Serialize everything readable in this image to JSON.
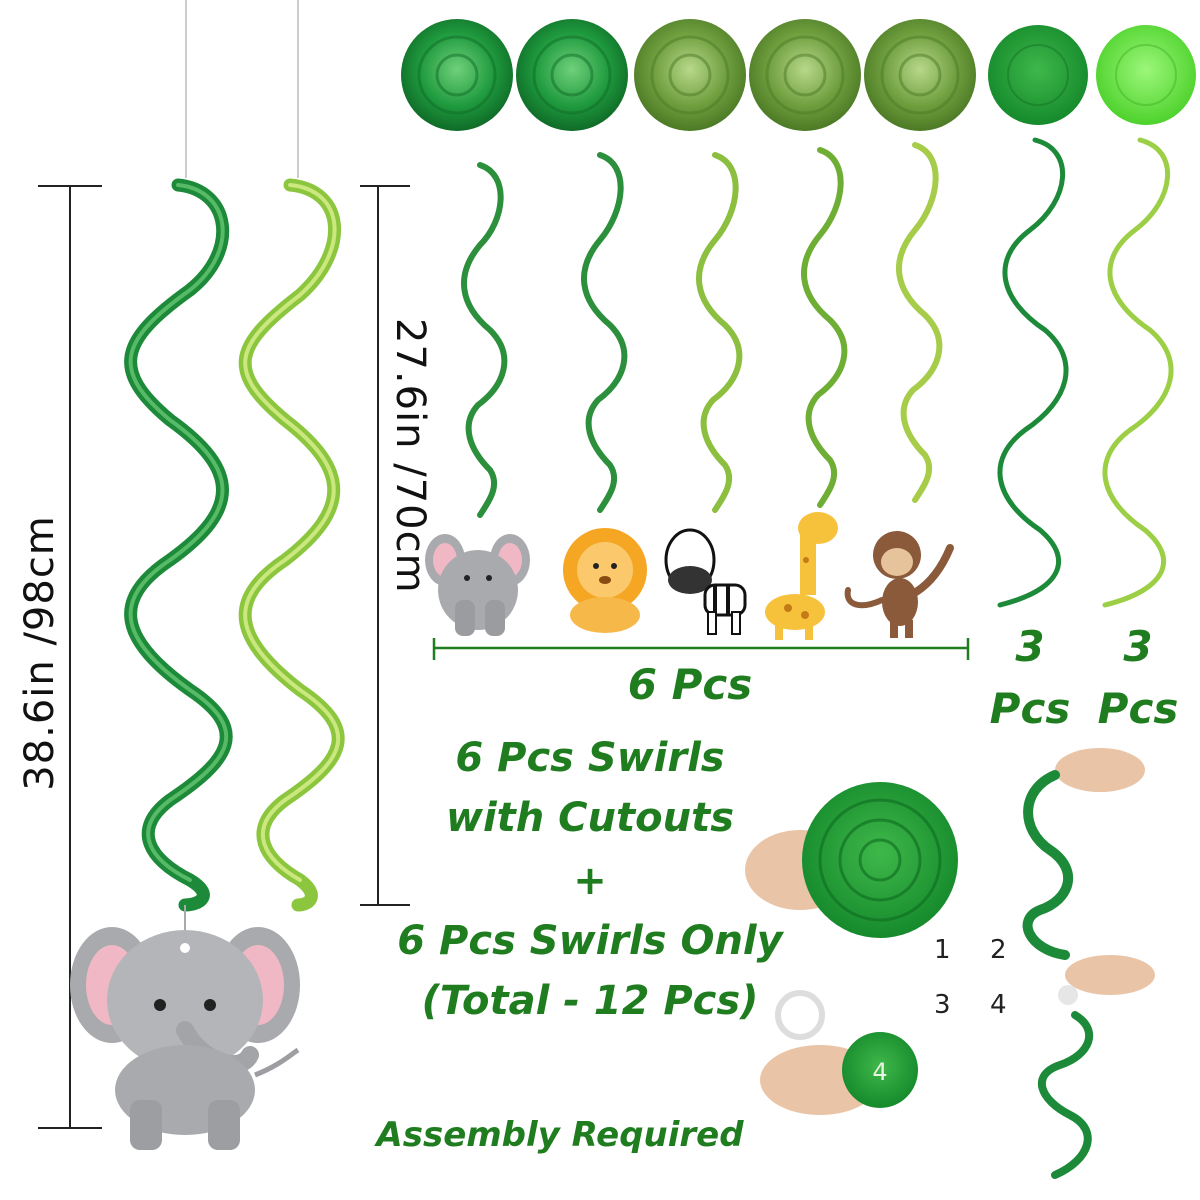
{
  "measurements": {
    "long_swirl": "38.6in /98cm",
    "short_swirl": "27.6in /70cm"
  },
  "counts": {
    "cutout_swirls": "6 Pcs",
    "dark_green_count": "3",
    "dark_green_unit": "Pcs",
    "light_green_count": "3",
    "light_green_unit": "Pcs"
  },
  "description": {
    "line1": "6 Pcs Swirls",
    "line2": "with Cutouts",
    "plus": "+",
    "line3": "6 Pcs Swirls Only",
    "line4": "(Total - 12 Pcs)"
  },
  "assembly": {
    "note": "Assembly Required",
    "steps": [
      "1",
      "2",
      "3",
      "4"
    ]
  },
  "cutouts": [
    "elephant",
    "lion",
    "zebra",
    "giraffe",
    "monkey"
  ],
  "colors": {
    "text_green": "#1f7d1f",
    "dark_green": "#1d8a3a",
    "light_green": "#8cc63f",
    "bright_green": "#5fe03a",
    "elephant_grey": "#a9aaad",
    "ear_pink": "#f0b8c4"
  }
}
